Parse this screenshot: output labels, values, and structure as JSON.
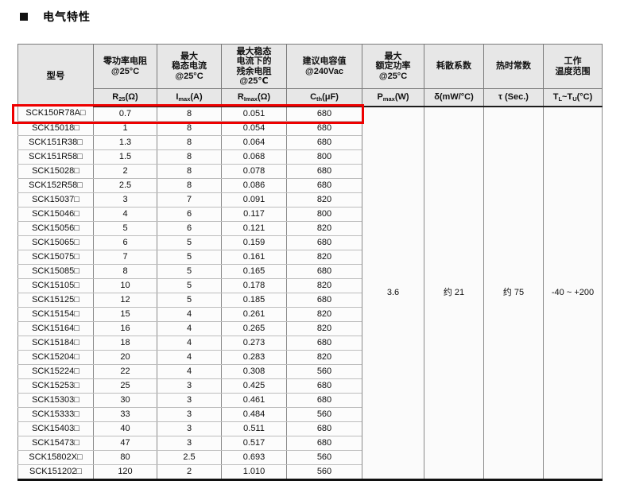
{
  "title": "电气特性",
  "highlight": {
    "color": "#ee0000",
    "highlighted_model": "SCK150R78A□"
  },
  "table": {
    "model_header": "型号",
    "columns": [
      {
        "label_lines": [
          "零功率电阻",
          "@25°C"
        ],
        "unit": [
          {
            "t": "R"
          },
          {
            "s": "25"
          },
          {
            "t": "(Ω)"
          }
        ]
      },
      {
        "label_lines": [
          "最大",
          "稳态电流",
          "@25°C"
        ],
        "unit": [
          {
            "t": "I"
          },
          {
            "s": "max"
          },
          {
            "t": "(A)"
          }
        ]
      },
      {
        "label_lines": [
          "最大稳态",
          "电流下的",
          "残余电阻",
          "@25℃"
        ],
        "unit": [
          {
            "t": "R"
          },
          {
            "s": "Imax"
          },
          {
            "t": "(Ω)"
          }
        ]
      },
      {
        "label_lines": [
          "建议电容值",
          "@240Vac"
        ],
        "unit": [
          {
            "t": "C"
          },
          {
            "s": "th"
          },
          {
            "t": "(μF)"
          }
        ]
      },
      {
        "label_lines": [
          "最大",
          "额定功率",
          "@25°C"
        ],
        "unit": [
          {
            "t": "P"
          },
          {
            "s": "max"
          },
          {
            "t": "(W)"
          }
        ]
      },
      {
        "label_lines": [
          "耗散系数"
        ],
        "unit": [
          {
            "t": "δ(mW/°C)"
          }
        ]
      },
      {
        "label_lines": [
          "热时常数"
        ],
        "unit": [
          {
            "t": "τ (Sec.)"
          }
        ]
      },
      {
        "label_lines": [
          "工作",
          "温度范围"
        ],
        "unit": [
          {
            "t": "T"
          },
          {
            "s": "L"
          },
          {
            "t": "~T"
          },
          {
            "s": "U"
          },
          {
            "t": "(°C)"
          }
        ]
      }
    ],
    "rows": [
      {
        "model": "SCK150R78A□",
        "r25": "0.7",
        "imax": "8",
        "rimax": "0.051",
        "cth": "680",
        "highlight": true
      },
      {
        "model": "SCK15018□",
        "r25": "1",
        "imax": "8",
        "rimax": "0.054",
        "cth": "680"
      },
      {
        "model": "SCK151R38□",
        "r25": "1.3",
        "imax": "8",
        "rimax": "0.064",
        "cth": "680"
      },
      {
        "model": "SCK151R58□",
        "r25": "1.5",
        "imax": "8",
        "rimax": "0.068",
        "cth": "800"
      },
      {
        "model": "SCK15028□",
        "r25": "2",
        "imax": "8",
        "rimax": "0.078",
        "cth": "680"
      },
      {
        "model": "SCK152R58□",
        "r25": "2.5",
        "imax": "8",
        "rimax": "0.086",
        "cth": "680"
      },
      {
        "model": "SCK15037□",
        "r25": "3",
        "imax": "7",
        "rimax": "0.091",
        "cth": "820"
      },
      {
        "model": "SCK15046□",
        "r25": "4",
        "imax": "6",
        "rimax": "0.117",
        "cth": "800"
      },
      {
        "model": "SCK15056□",
        "r25": "5",
        "imax": "6",
        "rimax": "0.121",
        "cth": "820"
      },
      {
        "model": "SCK15065□",
        "r25": "6",
        "imax": "5",
        "rimax": "0.159",
        "cth": "680"
      },
      {
        "model": "SCK15075□",
        "r25": "7",
        "imax": "5",
        "rimax": "0.161",
        "cth": "820"
      },
      {
        "model": "SCK15085□",
        "r25": "8",
        "imax": "5",
        "rimax": "0.165",
        "cth": "680"
      },
      {
        "model": "SCK15105□",
        "r25": "10",
        "imax": "5",
        "rimax": "0.178",
        "cth": "820"
      },
      {
        "model": "SCK15125□",
        "r25": "12",
        "imax": "5",
        "rimax": "0.185",
        "cth": "680"
      },
      {
        "model": "SCK15154□",
        "r25": "15",
        "imax": "4",
        "rimax": "0.261",
        "cth": "820"
      },
      {
        "model": "SCK15164□",
        "r25": "16",
        "imax": "4",
        "rimax": "0.265",
        "cth": "820"
      },
      {
        "model": "SCK15184□",
        "r25": "18",
        "imax": "4",
        "rimax": "0.273",
        "cth": "680"
      },
      {
        "model": "SCK15204□",
        "r25": "20",
        "imax": "4",
        "rimax": "0.283",
        "cth": "820"
      },
      {
        "model": "SCK15224□",
        "r25": "22",
        "imax": "4",
        "rimax": "0.308",
        "cth": "560"
      },
      {
        "model": "SCK15253□",
        "r25": "25",
        "imax": "3",
        "rimax": "0.425",
        "cth": "680"
      },
      {
        "model": "SCK15303□",
        "r25": "30",
        "imax": "3",
        "rimax": "0.461",
        "cth": "680"
      },
      {
        "model": "SCK15333□",
        "r25": "33",
        "imax": "3",
        "rimax": "0.484",
        "cth": "560"
      },
      {
        "model": "SCK15403□",
        "r25": "40",
        "imax": "3",
        "rimax": "0.511",
        "cth": "680"
      },
      {
        "model": "SCK15473□",
        "r25": "47",
        "imax": "3",
        "rimax": "0.517",
        "cth": "680"
      },
      {
        "model": "SCK15802X□",
        "r25": "80",
        "imax": "2.5",
        "rimax": "0.693",
        "cth": "560"
      },
      {
        "model": "SCK151202□",
        "r25": "120",
        "imax": "2",
        "rimax": "1.010",
        "cth": "560"
      }
    ],
    "merged_values": {
      "pmax": "3.6",
      "dissipation_factor": "约 21",
      "thermal_time_constant": "约 75",
      "temp_range": "-40 ~ +200"
    }
  }
}
